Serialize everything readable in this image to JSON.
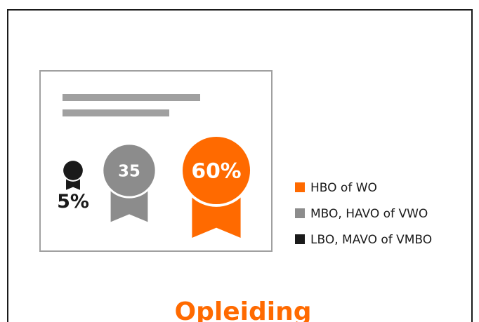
{
  "chart_data": {
    "type": "badge",
    "title": "Opleiding",
    "categories": [
      "HBO of WO",
      "MBO, HAVO of VWO",
      "LBO, MAVO of VMBO"
    ],
    "values": [
      60,
      35,
      5
    ],
    "value_labels": [
      "60%",
      "35",
      "5%"
    ],
    "colors": [
      "#ff6a00",
      "#8c8c8c",
      "#1a1a1a"
    ]
  }
}
